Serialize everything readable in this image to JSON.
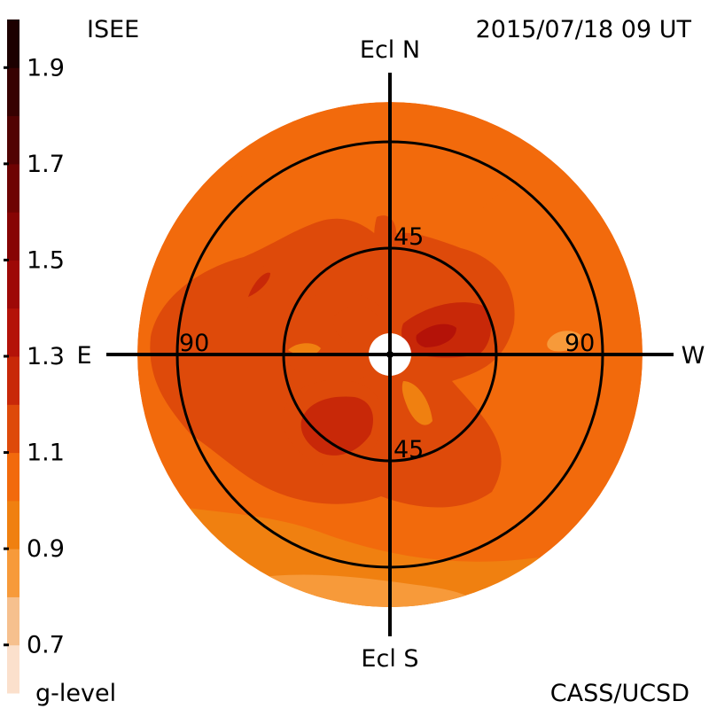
{
  "header": {
    "observatory": "ISEE",
    "timestamp": "2015/07/18 09 UT"
  },
  "footer": {
    "colorbar_label": "g-level",
    "credit": "CASS/UCSD"
  },
  "directions": {
    "north": "Ecl N",
    "south": "Ecl S",
    "east": "E",
    "west": "W"
  },
  "elongation_labels": {
    "inner_top": "45",
    "inner_bottom": "45",
    "outer_left": "90",
    "outer_right": "90"
  },
  "colorbar": {
    "min": 0.6,
    "max": 2.0,
    "ticks": [
      {
        "value": 0.7,
        "label": "0.7"
      },
      {
        "value": 0.9,
        "label": "0.9"
      },
      {
        "value": 1.1,
        "label": "1.1"
      },
      {
        "value": 1.3,
        "label": "1.3"
      },
      {
        "value": 1.5,
        "label": "1.5"
      },
      {
        "value": 1.7,
        "label": "1.7"
      },
      {
        "value": 1.9,
        "label": "1.9"
      }
    ],
    "bands": [
      {
        "from": 0.6,
        "to": 0.7,
        "color": "#fbe0cc"
      },
      {
        "from": 0.7,
        "to": 0.8,
        "color": "#f6c08e"
      },
      {
        "from": 0.8,
        "to": 0.9,
        "color": "#f79a3a"
      },
      {
        "from": 0.9,
        "to": 1.0,
        "color": "#f08010"
      },
      {
        "from": 1.0,
        "to": 1.1,
        "color": "#f26a0c"
      },
      {
        "from": 1.1,
        "to": 1.2,
        "color": "#de4a0a"
      },
      {
        "from": 1.2,
        "to": 1.3,
        "color": "#c82808"
      },
      {
        "from": 1.3,
        "to": 1.4,
        "color": "#b41208"
      },
      {
        "from": 1.4,
        "to": 1.5,
        "color": "#9e0806"
      },
      {
        "from": 1.5,
        "to": 1.6,
        "color": "#870404"
      },
      {
        "from": 1.6,
        "to": 1.7,
        "color": "#6e0302"
      },
      {
        "from": 1.7,
        "to": 1.8,
        "color": "#520202"
      },
      {
        "from": 1.8,
        "to": 1.9,
        "color": "#370101"
      },
      {
        "from": 1.9,
        "to": 2.0,
        "color": "#1c0000"
      }
    ]
  },
  "chart_data": {
    "type": "heatmap",
    "projection": "polar fisheye sky map, ecliptic coordinates",
    "quantity": "g-level",
    "elongation_circles_deg": [
      45,
      90
    ],
    "max_elongation_deg": 105,
    "regions": [
      {
        "name": "background",
        "g": 1.0
      },
      {
        "name": "lower-band",
        "g": 0.95
      },
      {
        "name": "bottom-edge",
        "g": 0.85
      },
      {
        "name": "upper-right-patch",
        "g": 1.05
      },
      {
        "name": "upper-left-patch",
        "g": 1.05
      },
      {
        "name": "central-patch",
        "g": 1.1
      },
      {
        "name": "north-spur",
        "g": 1.1
      },
      {
        "name": "southeast-lobe",
        "g": 1.15
      },
      {
        "name": "southeast-core",
        "g": 1.25
      },
      {
        "name": "northwest-arc",
        "g": 1.15
      },
      {
        "name": "northwest-core",
        "g": 1.2
      },
      {
        "name": "west-of-sun-lobe",
        "g": 1.2
      },
      {
        "name": "west-of-sun-core",
        "g": 1.3
      },
      {
        "name": "east-ring-patch",
        "g": 0.9
      },
      {
        "name": "west-rim-patch",
        "g": 0.8
      },
      {
        "name": "south-streak",
        "g": 0.95
      },
      {
        "name": "sun-occulter",
        "g": null
      }
    ]
  }
}
